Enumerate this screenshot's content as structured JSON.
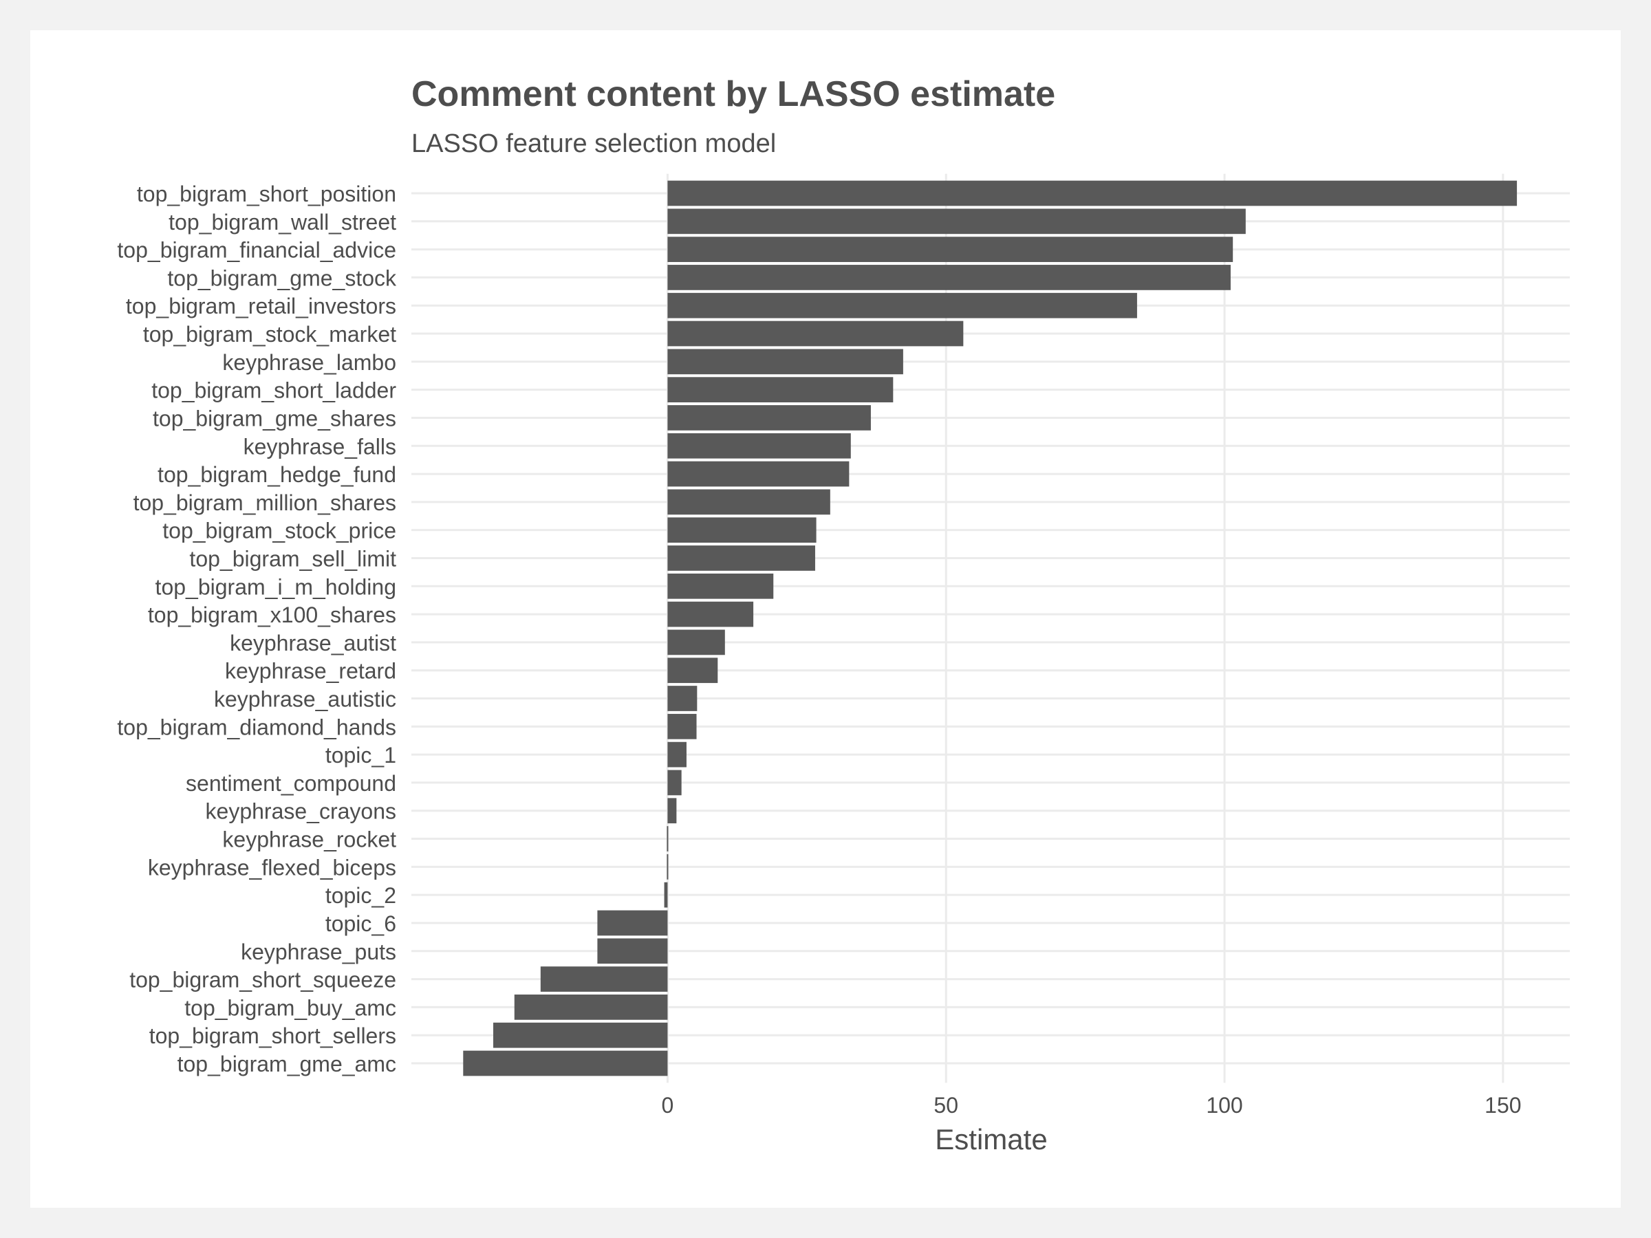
{
  "chart_data": {
    "type": "bar",
    "orientation": "horizontal",
    "title": "Comment content by LASSO estimate",
    "subtitle": "LASSO feature selection model",
    "xlabel": "Estimate",
    "ylabel": "",
    "xlim": [
      -46,
      162
    ],
    "xticks": [
      0,
      50,
      100,
      150
    ],
    "grid": true,
    "legend": "none",
    "bar_color": "#595959",
    "grid_color": "#ebebeb",
    "text_color": "#4d4d4d",
    "categories": [
      "top_bigram_short_position",
      "top_bigram_wall_street",
      "top_bigram_financial_advice",
      "top_bigram_gme_stock",
      "top_bigram_retail_investors",
      "top_bigram_stock_market",
      "keyphrase_lambo",
      "top_bigram_short_ladder",
      "top_bigram_gme_shares",
      "keyphrase_falls",
      "top_bigram_hedge_fund",
      "top_bigram_million_shares",
      "top_bigram_stock_price",
      "top_bigram_sell_limit",
      "top_bigram_i_m_holding",
      "top_bigram_x100_shares",
      "keyphrase_autist",
      "keyphrase_retard",
      "keyphrase_autistic",
      "top_bigram_diamond_hands",
      "topic_1",
      "sentiment_compound",
      "keyphrase_crayons",
      "keyphrase_rocket",
      "keyphrase_flexed_biceps",
      "topic_2",
      "topic_6",
      "keyphrase_puts",
      "top_bigram_short_squeeze",
      "top_bigram_buy_amc",
      "top_bigram_short_sellers",
      "top_bigram_gme_amc"
    ],
    "values": [
      152.5,
      103.8,
      101.5,
      101.1,
      84.3,
      53.1,
      42.3,
      40.5,
      36.5,
      32.9,
      32.6,
      29.2,
      26.7,
      26.5,
      19.0,
      15.4,
      10.3,
      9.0,
      5.3,
      5.2,
      3.4,
      2.5,
      1.6,
      0.2,
      0.1,
      -0.6,
      -12.6,
      -12.6,
      -22.8,
      -27.5,
      -31.3,
      -36.7
    ]
  }
}
